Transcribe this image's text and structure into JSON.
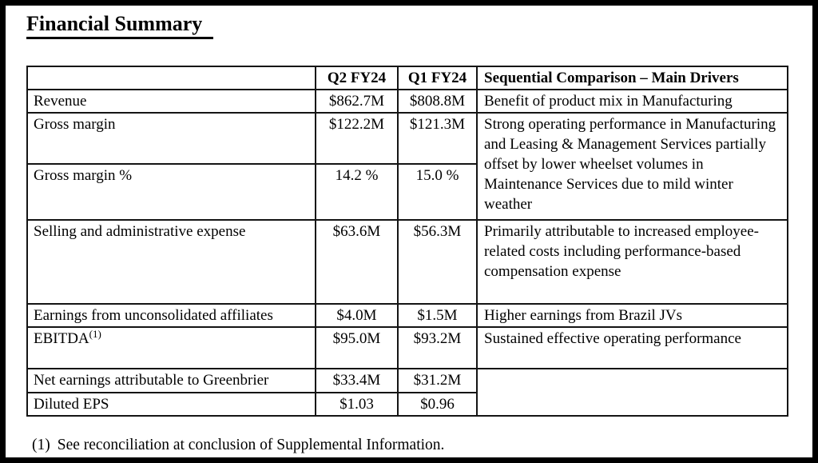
{
  "page": {
    "title": "Financial Summary"
  },
  "table": {
    "headers": {
      "metric": "",
      "q2": "Q2 FY24",
      "q1": "Q1 FY24",
      "drivers": "Sequential Comparison – Main Drivers"
    },
    "rows": [
      {
        "label": "Revenue",
        "q2": "$862.7M",
        "q1": "$808.8M",
        "driver": "Benefit of product mix in Manufacturing"
      },
      {
        "label": "Gross margin",
        "q2": "$122.2M",
        "q1": "$121.3M",
        "driver": "Strong operating performance in Manufacturing and Leasing & Management Services partially offset by lower wheelset volumes in Maintenance Services due to mild winter weather"
      },
      {
        "label": "Gross margin %",
        "q2": "14.2 %",
        "q1": "15.0 %",
        "driver": null
      },
      {
        "label": "Selling and administrative expense",
        "q2": "$63.6M",
        "q1": "$56.3M",
        "driver": "Primarily attributable to increased employee-related costs including performance-based compensation expense"
      },
      {
        "label": "Earnings from unconsolidated affiliates",
        "q2": "$4.0M",
        "q1": "$1.5M",
        "driver": "Higher earnings from Brazil JVs"
      },
      {
        "label": "EBITDA",
        "footnote_ref": "(1)",
        "q2": "$95.0M",
        "q1": "$93.2M",
        "driver": "Sustained effective operating performance"
      },
      {
        "label": "Net earnings attributable to Greenbrier",
        "q2": "$33.4M",
        "q1": "$31.2M",
        "driver": ""
      },
      {
        "label": "Diluted EPS",
        "q2": "$1.03",
        "q1": "$0.96",
        "driver": null
      }
    ]
  },
  "footnote": {
    "marker": "(1)",
    "text": "See reconciliation at conclusion of Supplemental Information."
  }
}
